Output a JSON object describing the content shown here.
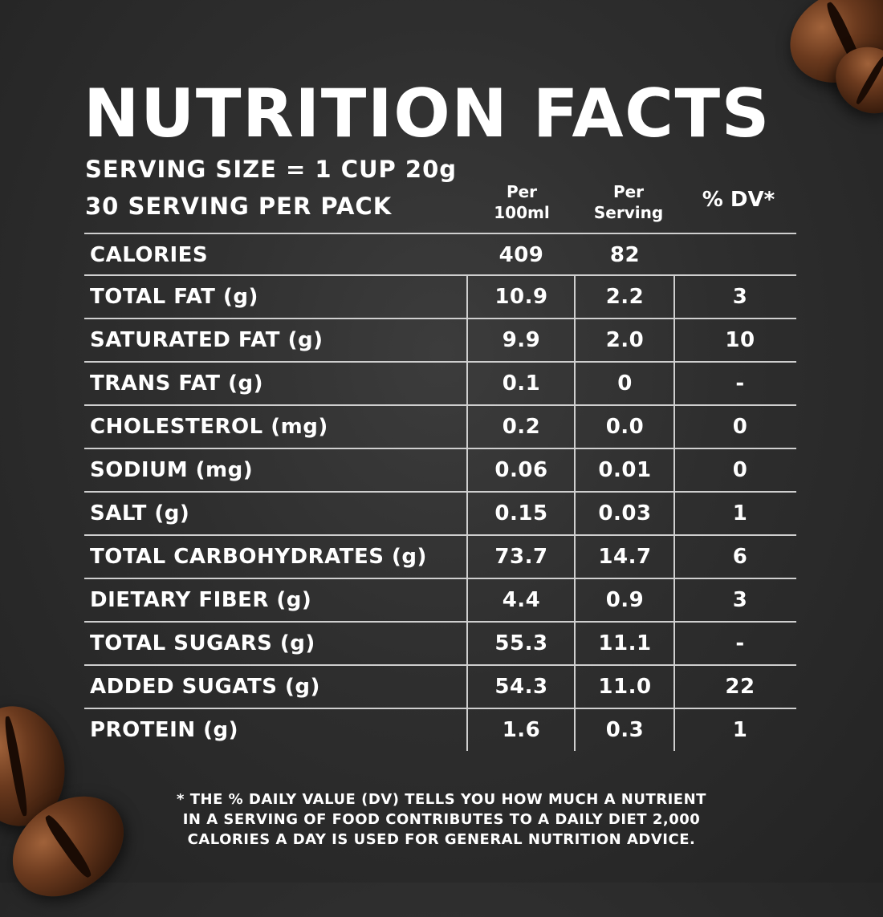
{
  "title": "NUTRITION FACTS",
  "serving": {
    "size": "SERVING SIZE = 1 CUP 20g",
    "per_pack": "30 SERVING PER PACK"
  },
  "columns": {
    "per100_l1": "Per",
    "per100_l2": "100ml",
    "perserv_l1": "Per",
    "perserv_l2": "Serving",
    "dv": "% DV*"
  },
  "rows": [
    {
      "name": "CALORIES",
      "per100": "409",
      "perserv": "82",
      "dv": ""
    },
    {
      "name": "TOTAL FAT (g)",
      "per100": "10.9",
      "perserv": "2.2",
      "dv": "3"
    },
    {
      "name": "SATURATED FAT (g)",
      "per100": "9.9",
      "perserv": "2.0",
      "dv": "10"
    },
    {
      "name": "TRANS FAT (g)",
      "per100": "0.1",
      "perserv": "0",
      "dv": "-"
    },
    {
      "name": "CHOLESTEROL (mg)",
      "per100": "0.2",
      "perserv": "0.0",
      "dv": "0"
    },
    {
      "name": "SODIUM (mg)",
      "per100": "0.06",
      "perserv": "0.01",
      "dv": "0"
    },
    {
      "name": "SALT (g)",
      "per100": "0.15",
      "perserv": "0.03",
      "dv": "1"
    },
    {
      "name": "TOTAL CARBOHYDRATES (g)",
      "per100": "73.7",
      "perserv": "14.7",
      "dv": "6"
    },
    {
      "name": "DIETARY FIBER (g)",
      "per100": "4.4",
      "perserv": "0.9",
      "dv": "3"
    },
    {
      "name": "TOTAL SUGARS (g)",
      "per100": "55.3",
      "perserv": "11.1",
      "dv": "-"
    },
    {
      "name": "ADDED SUGATS (g)",
      "per100": "54.3",
      "perserv": "11.0",
      "dv": "22"
    },
    {
      "name": "PROTEIN (g)",
      "per100": "1.6",
      "perserv": "0.3",
      "dv": "1"
    }
  ],
  "footnote": {
    "line1": "* THE % DAILY VALUE (DV) TELLS YOU HOW MUCH A NUTRIENT",
    "line2": "IN A SERVING OF FOOD CONTRIBUTES TO A DAILY DIET 2,000",
    "line3": "CALORIES A DAY IS USED FOR GENERAL NUTRITION ADVICE."
  },
  "colors": {
    "background": "#2e2e2e",
    "text": "#ffffff",
    "rule": "#cfcfcf",
    "bean": "#6b3a1e"
  }
}
